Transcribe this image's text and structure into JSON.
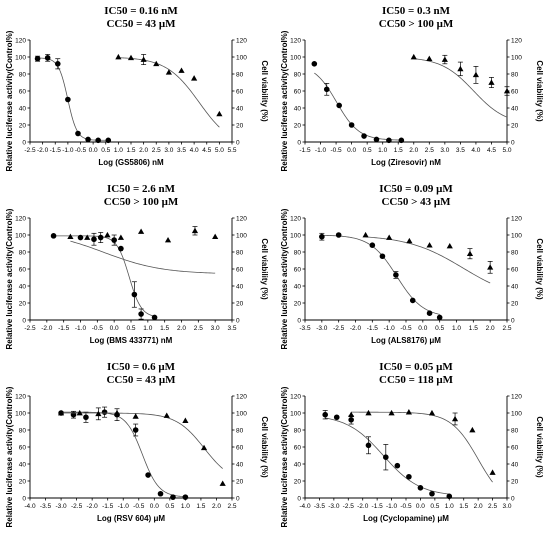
{
  "chart_data": [
    {
      "type": "scatter",
      "title": "IC50 = 0.16 nM",
      "subtitle": "CC50 = 43 μM",
      "xlabel": "Log (GS5806) nM",
      "ylabel": "Relative luciferase activity(Control%)",
      "y2label": "Cell viability (%)",
      "xlim": [
        -2.5,
        5.5
      ],
      "xticks": [
        "-2.5",
        "-2.0",
        "-1.5",
        "-1.0",
        "-0.5",
        "0.0",
        "0.5",
        "1.0",
        "1.5",
        "2.0",
        "2.5",
        "3.0",
        "3.5",
        "4.0",
        "4.5",
        "5.0",
        "5.5"
      ],
      "ylim": [
        0,
        120
      ],
      "yticks": [
        "0",
        "20",
        "40",
        "60",
        "80",
        "100",
        "120"
      ],
      "series": [
        {
          "marker": "circle",
          "x": [
            -2.2,
            -1.8,
            -1.4,
            -1.0,
            -0.6,
            -0.2,
            0.2,
            0.6
          ],
          "y": [
            98,
            99,
            92,
            50,
            10,
            3,
            2,
            2
          ],
          "err": [
            3,
            4,
            6,
            0,
            0,
            0,
            0,
            0
          ]
        },
        {
          "marker": "triangle",
          "x": [
            1.0,
            1.5,
            2.0,
            2.5,
            3.0,
            3.5,
            4.0,
            5.0
          ],
          "y": [
            100,
            99,
            97,
            92,
            82,
            84,
            75,
            33
          ],
          "err": [
            0,
            0,
            6,
            0,
            0,
            0,
            0,
            0
          ]
        }
      ]
    },
    {
      "type": "scatter",
      "title": "IC50 = 0.3 nM",
      "subtitle": "CC50 > 100 μM",
      "xlabel": "Log (Ziresovir) nM",
      "ylabel": "Relative luciferase activity(Control%)",
      "y2label": "Cell viability (%)",
      "xlim": [
        -1.5,
        5.0
      ],
      "xticks": [
        "-1.5",
        "-1.0",
        "-0.5",
        "0.0",
        "0.5",
        "1.0",
        "1.5",
        "2.0",
        "2.5",
        "3.0",
        "3.5",
        "4.0",
        "4.5",
        "5.0"
      ],
      "ylim": [
        0,
        120
      ],
      "yticks": [
        "0",
        "20",
        "40",
        "60",
        "80",
        "100",
        "120"
      ],
      "series": [
        {
          "marker": "circle",
          "x": [
            -1.2,
            -0.8,
            -0.4,
            0.0,
            0.4,
            0.8,
            1.2,
            1.6
          ],
          "y": [
            92,
            62,
            43,
            20,
            7,
            3,
            2,
            2
          ],
          "err": [
            0,
            7,
            0,
            0,
            0,
            0,
            0,
            0
          ]
        },
        {
          "marker": "triangle",
          "x": [
            2.0,
            2.5,
            3.0,
            3.5,
            4.0,
            4.5,
            5.0
          ],
          "y": [
            100,
            98,
            97,
            86,
            79,
            70,
            60
          ],
          "err": [
            0,
            0,
            5,
            8,
            10,
            6,
            5
          ]
        }
      ]
    },
    {
      "type": "scatter",
      "title": "IC50 = 2.6 nM",
      "subtitle": "CC50 > 100 μM",
      "xlabel": "Log (BMS 433771) nM",
      "ylabel": "Relative luciferase activity(Control%)",
      "y2label": "Cell viability (%)",
      "xlim": [
        -2.5,
        3.5
      ],
      "xticks": [
        "-2.5",
        "-2.0",
        "-1.5",
        "-1.0",
        "-0.5",
        "0.0",
        "0.5",
        "1.0",
        "1.5",
        "2.0",
        "2.5",
        "3.0",
        "3.5"
      ],
      "ylim": [
        0,
        120
      ],
      "yticks": [
        "0",
        "20",
        "40",
        "60",
        "80",
        "100",
        "120"
      ],
      "series": [
        {
          "marker": "circle",
          "x": [
            -1.8,
            -1.0,
            -0.6,
            -0.4,
            0.0,
            0.2,
            0.6,
            0.8,
            1.2
          ],
          "y": [
            99,
            97,
            95,
            97,
            94,
            84,
            30,
            7,
            3
          ],
          "err": [
            0,
            0,
            7,
            6,
            6,
            0,
            15,
            6,
            0
          ]
        },
        {
          "marker": "triangle",
          "x": [
            -1.3,
            -0.8,
            -0.2,
            0.2,
            0.8,
            1.6,
            2.4,
            3.0
          ],
          "y": [
            98,
            97,
            100,
            97,
            104,
            94,
            105,
            98
          ],
          "err": [
            0,
            0,
            0,
            0,
            0,
            0,
            5,
            0
          ]
        }
      ]
    },
    {
      "type": "scatter",
      "title": "IC50 = 0.09 μM",
      "subtitle": "CC50 > 43 μM",
      "xlabel": "Log (ALS8176) μM",
      "ylabel": "Relative luciferase activity(Control%)",
      "y2label": "Cell viability (%)",
      "xlim": [
        -3.5,
        2.5
      ],
      "xticks": [
        "-3.5",
        "-3.0",
        "-2.5",
        "-2.0",
        "-1.5",
        "-1.0",
        "-0.5",
        "0.0",
        "0.5",
        "1.0",
        "1.5",
        "2.0",
        "2.5"
      ],
      "ylim": [
        0,
        120
      ],
      "yticks": [
        "0",
        "20",
        "40",
        "60",
        "80",
        "100",
        "120"
      ],
      "series": [
        {
          "marker": "circle",
          "x": [
            -3.0,
            -2.5,
            -1.5,
            -1.2,
            -0.8,
            -0.3,
            0.2,
            0.5
          ],
          "y": [
            98,
            100,
            88,
            75,
            53,
            23,
            8,
            3
          ],
          "err": [
            4,
            0,
            0,
            0,
            4,
            0,
            0,
            0
          ]
        },
        {
          "marker": "triangle",
          "x": [
            -1.7,
            -1.0,
            -0.4,
            0.2,
            0.8,
            1.4,
            2.0
          ],
          "y": [
            100,
            97,
            93,
            88,
            87,
            78,
            62
          ],
          "err": [
            0,
            0,
            0,
            0,
            0,
            6,
            7
          ]
        }
      ]
    },
    {
      "type": "scatter",
      "title": "IC50 = 0.6 μM",
      "subtitle": "CC50 = 43 μM",
      "xlabel": "Log (RSV 604) μM",
      "ylabel": "Relative luciferase activity(Control%)",
      "y2label": "Cell viability (%)",
      "xlim": [
        -4.0,
        2.5
      ],
      "xticks": [
        "-4.0",
        "-3.5",
        "-3.0",
        "-2.5",
        "-2.0",
        "-1.5",
        "-1.0",
        "-0.5",
        "0.0",
        "0.5",
        "1.0",
        "1.5",
        "2.0",
        "2.5"
      ],
      "ylim": [
        0,
        120
      ],
      "yticks": [
        "0",
        "20",
        "40",
        "60",
        "80",
        "100",
        "120"
      ],
      "series": [
        {
          "marker": "circle",
          "x": [
            -3.0,
            -2.6,
            -2.2,
            -1.6,
            -1.2,
            -0.6,
            -0.2,
            0.2,
            0.6,
            1.0
          ],
          "y": [
            100,
            98,
            95,
            101,
            98,
            80,
            27,
            5,
            1,
            1
          ],
          "err": [
            0,
            4,
            6,
            6,
            7,
            7,
            0,
            0,
            0,
            0
          ]
        },
        {
          "marker": "triangle",
          "x": [
            -3.0,
            -2.4,
            -1.8,
            -1.2,
            -0.6,
            0.4,
            1.0,
            1.6,
            2.2
          ],
          "y": [
            100,
            100,
            99,
            100,
            96,
            97,
            91,
            59,
            17
          ],
          "err": [
            0,
            0,
            7,
            0,
            0,
            0,
            0,
            0,
            0
          ]
        }
      ]
    },
    {
      "type": "scatter",
      "title": "IC50 = 0.05 μM",
      "subtitle": "CC50 = 118 μM",
      "xlabel": "Log (Cyclopamine) μM",
      "ylabel": "Relative luciferase activity(Control%)",
      "y2label": "Cell viability (%)",
      "xlim": [
        -4.0,
        3.0
      ],
      "xticks": [
        "-4.0",
        "-3.5",
        "-3.0",
        "-2.5",
        "-2.0",
        "-1.5",
        "-1.0",
        "-0.5",
        "0.0",
        "0.5",
        "1.0",
        "1.5",
        "2.0",
        "2.5",
        "3.0"
      ],
      "ylim": [
        0,
        120
      ],
      "yticks": [
        "0",
        "20",
        "40",
        "60",
        "80",
        "100",
        "120"
      ],
      "series": [
        {
          "marker": "circle",
          "x": [
            -3.3,
            -2.9,
            -2.4,
            -1.8,
            -1.2,
            -0.8,
            -0.4,
            0.0,
            0.4,
            1.0
          ],
          "y": [
            98,
            95,
            92,
            62,
            48,
            38,
            25,
            12,
            5,
            2
          ],
          "err": [
            5,
            0,
            5,
            10,
            15,
            0,
            0,
            0,
            0,
            0
          ]
        },
        {
          "marker": "triangle",
          "x": [
            -2.4,
            -1.8,
            -1.0,
            -0.4,
            0.4,
            1.2,
            1.8,
            2.5
          ],
          "y": [
            98,
            100,
            100,
            101,
            100,
            93,
            80,
            30
          ],
          "err": [
            0,
            0,
            0,
            0,
            0,
            7,
            0,
            0
          ]
        }
      ]
    }
  ]
}
